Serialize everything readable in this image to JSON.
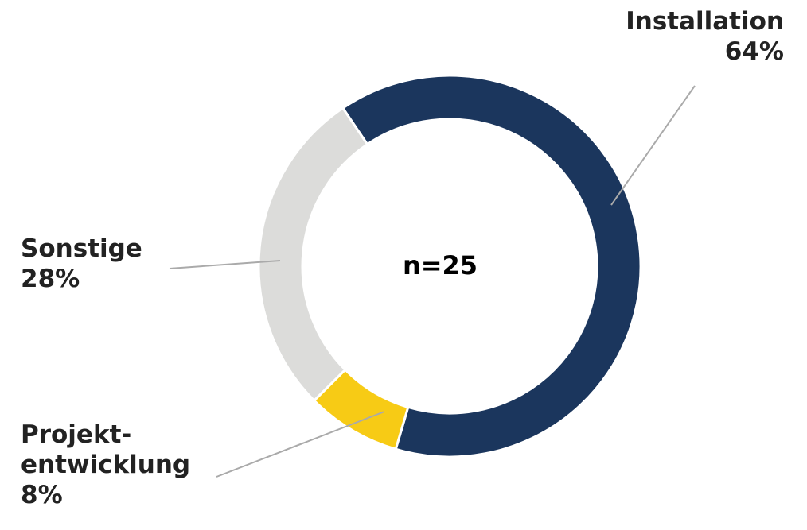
{
  "chart_data": {
    "type": "donut",
    "center_label": "n=25",
    "categories": [
      "Installation",
      "Projekt-\nentwicklung",
      "Sonstige"
    ],
    "values": [
      64,
      8,
      28
    ],
    "value_labels": [
      "64%",
      "8%",
      "28%"
    ],
    "colors": [
      "#1b365d",
      "#f7cb15",
      "#dcdcda"
    ]
  }
}
